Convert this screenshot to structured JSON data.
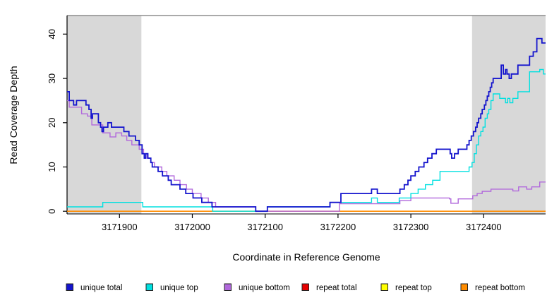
{
  "chart_data": {
    "type": "line",
    "subtype": "step-after",
    "title": "",
    "xlabel": "Coordinate in Reference Genome",
    "ylabel": "Read Coverage Depth",
    "xlim": [
      3171828,
      3172485
    ],
    "ylim": [
      -0.6,
      44.2
    ],
    "x_ticks": [
      3171900,
      3172000,
      3172100,
      3172200,
      3172300,
      3172400
    ],
    "y_ticks": [
      0,
      10,
      20,
      30,
      40
    ],
    "grid": false,
    "legend_position": "bottom-horizontal",
    "background_color": "#ffffff",
    "shaded_region_color": "#d8d8d8",
    "shaded_regions": [
      {
        "x0": 3171828,
        "x1": 3171930
      },
      {
        "x0": 3172384,
        "x1": 3172485
      }
    ],
    "series": [
      {
        "name": "repeat total",
        "color": "#e60000",
        "width": 1.2,
        "points": [
          [
            3171828,
            0
          ],
          [
            3172485,
            0
          ]
        ]
      },
      {
        "name": "repeat top",
        "color": "#ffff00",
        "width": 1.2,
        "points": [
          [
            3171828,
            0
          ],
          [
            3172485,
            0
          ]
        ]
      },
      {
        "name": "repeat bottom",
        "color": "#ff8c00",
        "width": 1.6,
        "points": [
          [
            3171828,
            0
          ],
          [
            3172485,
            0
          ]
        ]
      },
      {
        "name": "unique bottom",
        "color": "#b168dc",
        "width": 1.4,
        "points": [
          [
            3171828,
            25
          ],
          [
            3171831,
            23.5
          ],
          [
            3171848,
            22
          ],
          [
            3171856,
            21.5
          ],
          [
            3171862,
            19.5
          ],
          [
            3171877,
            17.7
          ],
          [
            3171887,
            16.8
          ],
          [
            3171895,
            17.7
          ],
          [
            3171903,
            17
          ],
          [
            3171910,
            16
          ],
          [
            3171917,
            15
          ],
          [
            3171927,
            14
          ],
          [
            3171933,
            13
          ],
          [
            3171938,
            12
          ],
          [
            3171943,
            11
          ],
          [
            3171948,
            10
          ],
          [
            3171958,
            9
          ],
          [
            3171965,
            8
          ],
          [
            3171975,
            7
          ],
          [
            3171983,
            6
          ],
          [
            3171992,
            5
          ],
          [
            3172000,
            4
          ],
          [
            3172012,
            3
          ],
          [
            3172022,
            2
          ],
          [
            3172032,
            1
          ],
          [
            3172087,
            0
          ],
          [
            3172202,
            1.7
          ],
          [
            3172285,
            2.4
          ],
          [
            3172300,
            3
          ],
          [
            3172353,
            2.8
          ],
          [
            3172355,
            1.8
          ],
          [
            3172365,
            2.8
          ],
          [
            3172385,
            3.5
          ],
          [
            3172391,
            4
          ],
          [
            3172398,
            4.5
          ],
          [
            3172410,
            5
          ],
          [
            3172440,
            4.6
          ],
          [
            3172448,
            5.5
          ],
          [
            3172459,
            5
          ],
          [
            3172466,
            5.5
          ],
          [
            3172477,
            6.6
          ]
        ]
      },
      {
        "name": "unique top",
        "color": "#00e0e0",
        "width": 1.4,
        "points": [
          [
            3171828,
            1
          ],
          [
            3171877,
            2
          ],
          [
            3171932,
            1
          ],
          [
            3172028,
            0
          ],
          [
            3172103,
            1
          ],
          [
            3172189,
            2
          ],
          [
            3172246,
            3
          ],
          [
            3172254,
            2
          ],
          [
            3172284,
            3
          ],
          [
            3172300,
            4
          ],
          [
            3172310,
            5
          ],
          [
            3172320,
            6
          ],
          [
            3172330,
            7
          ],
          [
            3172340,
            9
          ],
          [
            3172380,
            10
          ],
          [
            3172384,
            11
          ],
          [
            3172387,
            13
          ],
          [
            3172390,
            15
          ],
          [
            3172393,
            17
          ],
          [
            3172396,
            18
          ],
          [
            3172399,
            19
          ],
          [
            3172402,
            21
          ],
          [
            3172405,
            22
          ],
          [
            3172407,
            23
          ],
          [
            3172410,
            25
          ],
          [
            3172413,
            26.5
          ],
          [
            3172422,
            25.5
          ],
          [
            3172430,
            24.5
          ],
          [
            3172433,
            25.5
          ],
          [
            3172436,
            24.5
          ],
          [
            3172440,
            25.5
          ],
          [
            3172447,
            27
          ],
          [
            3172463,
            31.5
          ],
          [
            3172477,
            32
          ],
          [
            3172482,
            31
          ]
        ]
      },
      {
        "name": "unique total",
        "color": "#1414cd",
        "width": 1.8,
        "points": [
          [
            3171828,
            27
          ],
          [
            3171831,
            25
          ],
          [
            3171837,
            24
          ],
          [
            3171841,
            25
          ],
          [
            3171854,
            24
          ],
          [
            3171858,
            23
          ],
          [
            3171861,
            21
          ],
          [
            3171863,
            22
          ],
          [
            3171871,
            20
          ],
          [
            3171874,
            19
          ],
          [
            3171876,
            18
          ],
          [
            3171878,
            19
          ],
          [
            3171884,
            20
          ],
          [
            3171889,
            19
          ],
          [
            3171906,
            18
          ],
          [
            3171913,
            17
          ],
          [
            3171922,
            16
          ],
          [
            3171927,
            15
          ],
          [
            3171931,
            13
          ],
          [
            3171934,
            12
          ],
          [
            3171936,
            13
          ],
          [
            3171939,
            12
          ],
          [
            3171943,
            11
          ],
          [
            3171945,
            10
          ],
          [
            3171953,
            9
          ],
          [
            3171959,
            8
          ],
          [
            3171967,
            7
          ],
          [
            3171971,
            6
          ],
          [
            3171983,
            5
          ],
          [
            3171991,
            4
          ],
          [
            3172001,
            3
          ],
          [
            3172013,
            2
          ],
          [
            3172027,
            1
          ],
          [
            3172087,
            0
          ],
          [
            3172103,
            1
          ],
          [
            3172189,
            2
          ],
          [
            3172204,
            4
          ],
          [
            3172246,
            5
          ],
          [
            3172254,
            4
          ],
          [
            3172285,
            5
          ],
          [
            3172291,
            6
          ],
          [
            3172296,
            7
          ],
          [
            3172300,
            8
          ],
          [
            3172306,
            9
          ],
          [
            3172311,
            10
          ],
          [
            3172318,
            11
          ],
          [
            3172323,
            12
          ],
          [
            3172329,
            13
          ],
          [
            3172335,
            14
          ],
          [
            3172354,
            13
          ],
          [
            3172356,
            12
          ],
          [
            3172360,
            13
          ],
          [
            3172365,
            14
          ],
          [
            3172377,
            15
          ],
          [
            3172380,
            16
          ],
          [
            3172383,
            17
          ],
          [
            3172386,
            18
          ],
          [
            3172389,
            19
          ],
          [
            3172391,
            20
          ],
          [
            3172393,
            21
          ],
          [
            3172396,
            22
          ],
          [
            3172398,
            23
          ],
          [
            3172401,
            24
          ],
          [
            3172403,
            25
          ],
          [
            3172405,
            26
          ],
          [
            3172407,
            27
          ],
          [
            3172409,
            28
          ],
          [
            3172411,
            29
          ],
          [
            3172413,
            30
          ],
          [
            3172424,
            33
          ],
          [
            3172427,
            31
          ],
          [
            3172430,
            32
          ],
          [
            3172432,
            31
          ],
          [
            3172435,
            30
          ],
          [
            3172438,
            31
          ],
          [
            3172447,
            33
          ],
          [
            3172463,
            35
          ],
          [
            3172468,
            36
          ],
          [
            3172473,
            39
          ],
          [
            3172480,
            38
          ]
        ]
      }
    ],
    "legend": [
      {
        "label": "unique total",
        "color": "#1414cd"
      },
      {
        "label": "unique top",
        "color": "#00e0e0"
      },
      {
        "label": "unique bottom",
        "color": "#b168dc"
      },
      {
        "label": "repeat total",
        "color": "#e60000"
      },
      {
        "label": "repeat top",
        "color": "#ffff00"
      },
      {
        "label": "repeat bottom",
        "color": "#ff8c00"
      }
    ]
  }
}
